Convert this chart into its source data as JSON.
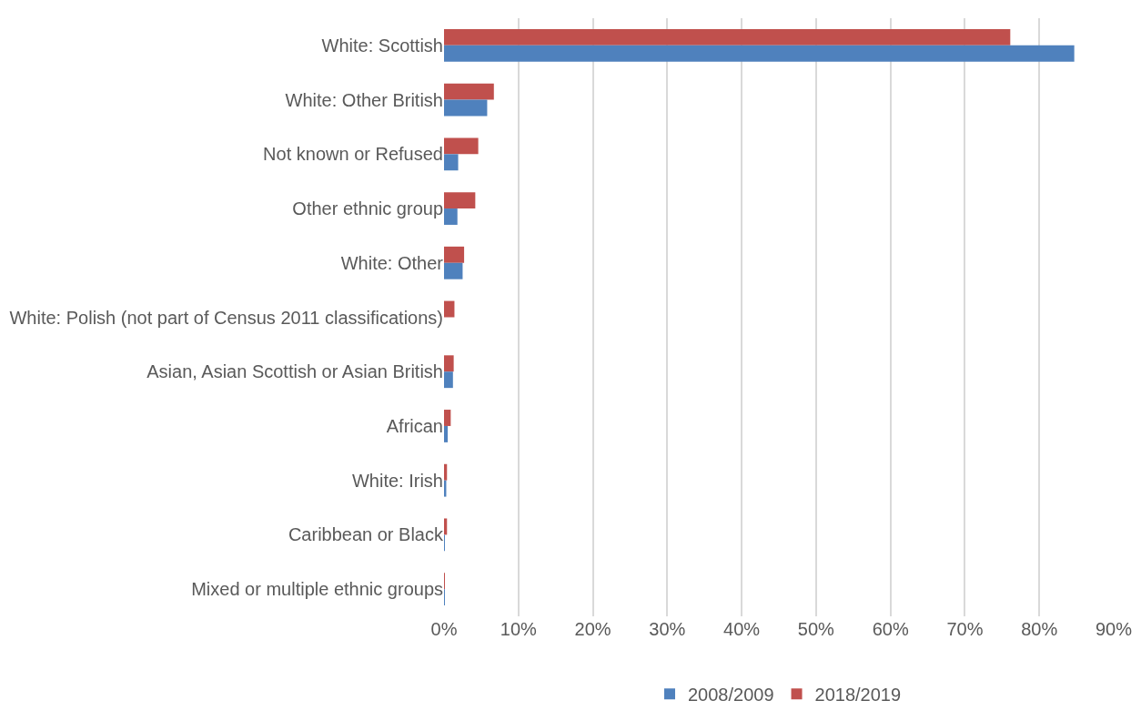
{
  "chart_data": {
    "type": "bar",
    "orientation": "horizontal",
    "categories": [
      "White: Scottish",
      "White: Other British",
      "Not known or Refused",
      "Other ethnic group",
      "White: Other",
      "White: Polish (not part of Census 2011 classifications)",
      "Asian, Asian Scottish or Asian British",
      "African",
      "White: Irish",
      "Caribbean or Black",
      "Mixed or multiple ethnic groups"
    ],
    "series": [
      {
        "name": "2008/2009",
        "color": "#4f81bd",
        "values": [
          84.7,
          5.8,
          1.9,
          1.8,
          2.5,
          null,
          1.2,
          0.5,
          0.3,
          0.1,
          0.1
        ]
      },
      {
        "name": "2018/2019",
        "color": "#c0504d",
        "values": [
          76.1,
          6.7,
          4.6,
          4.2,
          2.7,
          1.4,
          1.3,
          0.9,
          0.4,
          0.4,
          0.1
        ]
      }
    ],
    "xlim": [
      0,
      90
    ],
    "xticks": [
      {
        "value": 0,
        "label": "0%"
      },
      {
        "value": 10,
        "label": "10%"
      },
      {
        "value": 20,
        "label": "20%"
      },
      {
        "value": 30,
        "label": "30%"
      },
      {
        "value": 40,
        "label": "40%"
      },
      {
        "value": 50,
        "label": "50%"
      },
      {
        "value": 60,
        "label": "60%"
      },
      {
        "value": 70,
        "label": "70%"
      },
      {
        "value": 80,
        "label": "80%"
      },
      {
        "value": 90,
        "label": "90%"
      }
    ],
    "grid": "x",
    "legend": "bottom"
  }
}
